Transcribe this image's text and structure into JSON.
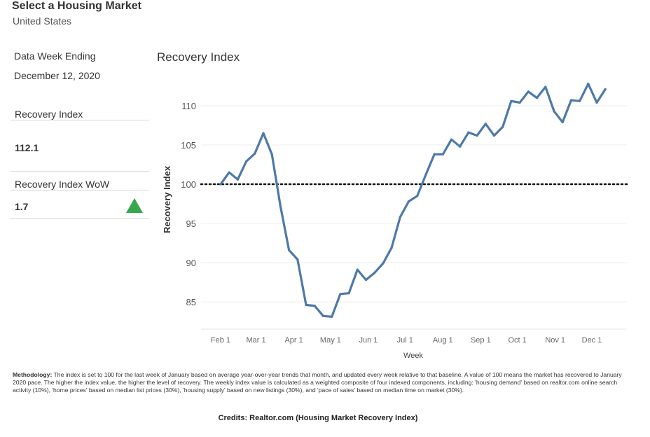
{
  "header": {
    "title": "Select a Housing Market",
    "market": "United States"
  },
  "sidebar": {
    "date_label": "Data Week Ending",
    "date_value": "December 12, 2020",
    "index_label": "Recovery Index",
    "index_value": "112.1",
    "wow_label": "Recovery Index WoW",
    "wow_value": "1.7",
    "wow_direction_icon": "up-triangle-icon",
    "wow_color": "#3aa64b"
  },
  "chart_data": {
    "type": "line",
    "title": "Recovery Index",
    "xlabel": "Week",
    "ylabel": "Recovery Index",
    "ylim": [
      82,
      114
    ],
    "yticks": [
      85,
      90,
      95,
      100,
      105,
      110
    ],
    "x_tick_labels": [
      "Feb 1",
      "Mar 1",
      "Apr 1",
      "May 1",
      "Jun 1",
      "Jul 1",
      "Aug 1",
      "Sep 1",
      "Oct 1",
      "Nov 1",
      "Dec 1"
    ],
    "reference_line": {
      "value": 100,
      "style": "dotted"
    },
    "line_color": "#4e79a7",
    "grid": "horizontal",
    "series": [
      {
        "x": [
          "2020-02-01",
          "2020-02-08",
          "2020-02-15",
          "2020-02-22",
          "2020-02-29",
          "2020-03-07",
          "2020-03-14",
          "2020-03-21",
          "2020-03-28",
          "2020-04-04",
          "2020-04-11",
          "2020-04-18",
          "2020-04-25",
          "2020-05-02",
          "2020-05-09",
          "2020-05-16",
          "2020-05-23",
          "2020-05-30",
          "2020-06-06",
          "2020-06-13",
          "2020-06-20",
          "2020-06-27",
          "2020-07-04",
          "2020-07-11",
          "2020-07-18",
          "2020-07-25",
          "2020-08-01",
          "2020-08-08",
          "2020-08-15",
          "2020-08-22",
          "2020-08-29",
          "2020-09-05",
          "2020-09-12",
          "2020-09-19",
          "2020-09-26",
          "2020-10-03",
          "2020-10-10",
          "2020-10-17",
          "2020-10-24",
          "2020-10-31",
          "2020-11-07",
          "2020-11-14",
          "2020-11-21",
          "2020-11-28",
          "2020-12-05",
          "2020-12-12"
        ],
        "values": [
          100.0,
          101.5,
          100.6,
          102.9,
          103.9,
          106.5,
          103.8,
          97.2,
          91.6,
          90.4,
          84.6,
          84.5,
          83.2,
          83.1,
          86.0,
          86.1,
          89.1,
          87.8,
          88.7,
          89.9,
          91.9,
          95.8,
          97.8,
          98.5,
          101.2,
          103.8,
          103.8,
          105.7,
          104.8,
          106.6,
          106.2,
          107.7,
          106.2,
          107.3,
          110.6,
          110.4,
          111.8,
          111.0,
          112.4,
          109.3,
          107.9,
          110.7,
          110.6,
          112.8,
          110.4,
          112.1
        ]
      }
    ]
  },
  "footer": {
    "methodology_label": "Methodology:",
    "methodology_text": " The index is set to 100 for the last week of January based on average year-over-year trends that month, and updated every week relative to that baseline. A value of 100 means the market has recovered to January 2020 pace. The higher the index value, the higher the level of recovery. The weekly index value is calculated as a weighted composite of four indexed components, including: 'housing demand' based on realtor.com online search activity (10%), 'home prices' based on median list prices (30%), 'housing supply' based on new listings (30%), and 'pace of sales' based on median time on market (30%).",
    "credits": "Credits: Realtor.com (Housing Market Recovery Index)"
  }
}
